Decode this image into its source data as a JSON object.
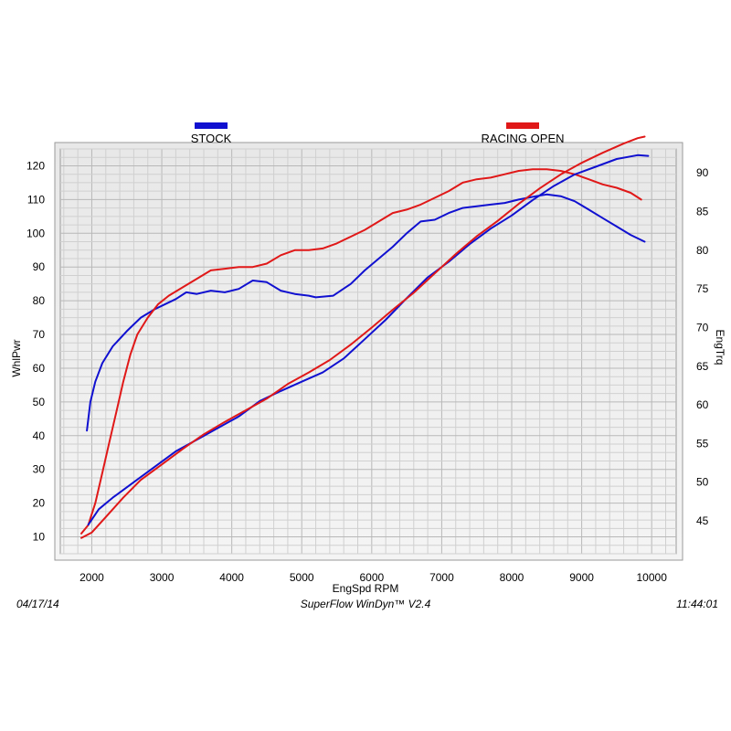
{
  "footer": {
    "date": "04/17/14",
    "software": "SuperFlow WinDyn™ V2.4",
    "time": "11:44:01"
  },
  "chart_data": {
    "type": "line",
    "xlabel": "EngSpd  RPM",
    "ylabel_left": "WhlPwr",
    "ylabel_right": "EngTrq",
    "xlim": [
      1550,
      10350
    ],
    "ylim_left": [
      5,
      125
    ],
    "ylim_right": [
      40.75,
      93.1
    ],
    "x_ticks": [
      2000,
      3000,
      4000,
      5000,
      6000,
      7000,
      8000,
      9000,
      10000
    ],
    "y_left_ticks": [
      10,
      20,
      30,
      40,
      50,
      60,
      70,
      80,
      90,
      100,
      110,
      120
    ],
    "y_right_ticks": [
      45,
      50,
      55,
      60,
      65,
      70,
      75,
      80,
      85,
      90
    ],
    "grid": true,
    "legend_position": "top",
    "series": [
      {
        "name": "STOCK",
        "color": "#1010d0",
        "metric": "power",
        "axis": "left",
        "points": [
          [
            1930,
            41.5
          ],
          [
            1980,
            50
          ],
          [
            2050,
            56
          ],
          [
            2150,
            61.5
          ],
          [
            2300,
            66.5
          ],
          [
            2500,
            71
          ],
          [
            2700,
            75
          ],
          [
            2900,
            77.5
          ],
          [
            3050,
            79
          ],
          [
            3200,
            80.5
          ],
          [
            3350,
            82.5
          ],
          [
            3500,
            82
          ],
          [
            3700,
            83
          ],
          [
            3900,
            82.5
          ],
          [
            4100,
            83.5
          ],
          [
            4300,
            86
          ],
          [
            4500,
            85.5
          ],
          [
            4700,
            83
          ],
          [
            4900,
            82
          ],
          [
            5100,
            81.5
          ],
          [
            5200,
            81
          ],
          [
            5450,
            81.5
          ],
          [
            5700,
            85
          ],
          [
            5900,
            89
          ],
          [
            6100,
            92.5
          ],
          [
            6300,
            96
          ],
          [
            6500,
            100
          ],
          [
            6700,
            103.5
          ],
          [
            6900,
            104
          ],
          [
            7100,
            106
          ],
          [
            7300,
            107.5
          ],
          [
            7500,
            108
          ],
          [
            7700,
            108.5
          ],
          [
            7900,
            109
          ],
          [
            8100,
            110
          ],
          [
            8350,
            111
          ],
          [
            8500,
            111.5
          ],
          [
            8700,
            111
          ],
          [
            8900,
            109.5
          ],
          [
            9100,
            107
          ],
          [
            9300,
            104.5
          ],
          [
            9500,
            102
          ],
          [
            9700,
            99.5
          ],
          [
            9900,
            97.5
          ]
        ]
      },
      {
        "name": "RACING OPEN",
        "color": "#e01818",
        "metric": "power",
        "axis": "left",
        "points": [
          [
            1850,
            11
          ],
          [
            1950,
            13.5
          ],
          [
            2050,
            20
          ],
          [
            2150,
            29
          ],
          [
            2250,
            38
          ],
          [
            2350,
            47
          ],
          [
            2450,
            56
          ],
          [
            2550,
            64
          ],
          [
            2650,
            70
          ],
          [
            2800,
            75
          ],
          [
            2950,
            79
          ],
          [
            3100,
            81.5
          ],
          [
            3300,
            84
          ],
          [
            3500,
            86.5
          ],
          [
            3700,
            89
          ],
          [
            3900,
            89.5
          ],
          [
            4100,
            90
          ],
          [
            4300,
            90
          ],
          [
            4500,
            91
          ],
          [
            4700,
            93.5
          ],
          [
            4900,
            95
          ],
          [
            5100,
            95
          ],
          [
            5300,
            95.5
          ],
          [
            5500,
            97
          ],
          [
            5700,
            99
          ],
          [
            5900,
            101
          ],
          [
            6100,
            103.5
          ],
          [
            6300,
            106
          ],
          [
            6500,
            107
          ],
          [
            6700,
            108.5
          ],
          [
            6900,
            110.5
          ],
          [
            7100,
            112.5
          ],
          [
            7300,
            115
          ],
          [
            7500,
            116
          ],
          [
            7700,
            116.5
          ],
          [
            7900,
            117.5
          ],
          [
            8100,
            118.5
          ],
          [
            8300,
            119
          ],
          [
            8500,
            119
          ],
          [
            8700,
            118.5
          ],
          [
            8900,
            117.5
          ],
          [
            9100,
            116
          ],
          [
            9300,
            114.5
          ],
          [
            9500,
            113.5
          ],
          [
            9700,
            112
          ],
          [
            9850,
            110
          ]
        ]
      },
      {
        "name": "STOCK",
        "color": "#1010d0",
        "metric": "torque",
        "axis": "right",
        "points": [
          [
            1950,
            44.5
          ],
          [
            2100,
            46.5
          ],
          [
            2300,
            48
          ],
          [
            2600,
            50
          ],
          [
            2900,
            52
          ],
          [
            3200,
            54
          ],
          [
            3500,
            55.5
          ],
          [
            3800,
            57
          ],
          [
            4100,
            58.5
          ],
          [
            4400,
            60.5
          ],
          [
            4700,
            61.8
          ],
          [
            5000,
            63
          ],
          [
            5300,
            64.2
          ],
          [
            5600,
            66
          ],
          [
            5900,
            68.5
          ],
          [
            6200,
            71
          ],
          [
            6500,
            73.8
          ],
          [
            6800,
            76.5
          ],
          [
            7100,
            78.5
          ],
          [
            7400,
            80.8
          ],
          [
            7700,
            82.8
          ],
          [
            8000,
            84.5
          ],
          [
            8300,
            86.5
          ],
          [
            8600,
            88.3
          ],
          [
            8900,
            89.8
          ],
          [
            9200,
            90.8
          ],
          [
            9500,
            91.8
          ],
          [
            9800,
            92.3
          ],
          [
            9950,
            92.2
          ]
        ]
      },
      {
        "name": "RACING OPEN",
        "color": "#e01818",
        "metric": "torque",
        "axis": "right",
        "points": [
          [
            1850,
            42.8
          ],
          [
            2000,
            43.5
          ],
          [
            2200,
            45.5
          ],
          [
            2450,
            48
          ],
          [
            2700,
            50.3
          ],
          [
            3000,
            52.3
          ],
          [
            3300,
            54.3
          ],
          [
            3600,
            56.2
          ],
          [
            3900,
            57.8
          ],
          [
            4200,
            59.3
          ],
          [
            4500,
            60.8
          ],
          [
            4800,
            62.7
          ],
          [
            5100,
            64.2
          ],
          [
            5400,
            65.8
          ],
          [
            5700,
            67.8
          ],
          [
            6000,
            70
          ],
          [
            6300,
            72.3
          ],
          [
            6600,
            74.5
          ],
          [
            6900,
            77
          ],
          [
            7200,
            79.5
          ],
          [
            7500,
            81.8
          ],
          [
            7800,
            83.8
          ],
          [
            8100,
            86
          ],
          [
            8400,
            88
          ],
          [
            8700,
            89.8
          ],
          [
            9000,
            91.3
          ],
          [
            9300,
            92.6
          ],
          [
            9600,
            93.8
          ],
          [
            9800,
            94.5
          ],
          [
            9900,
            94.7
          ]
        ]
      }
    ]
  }
}
